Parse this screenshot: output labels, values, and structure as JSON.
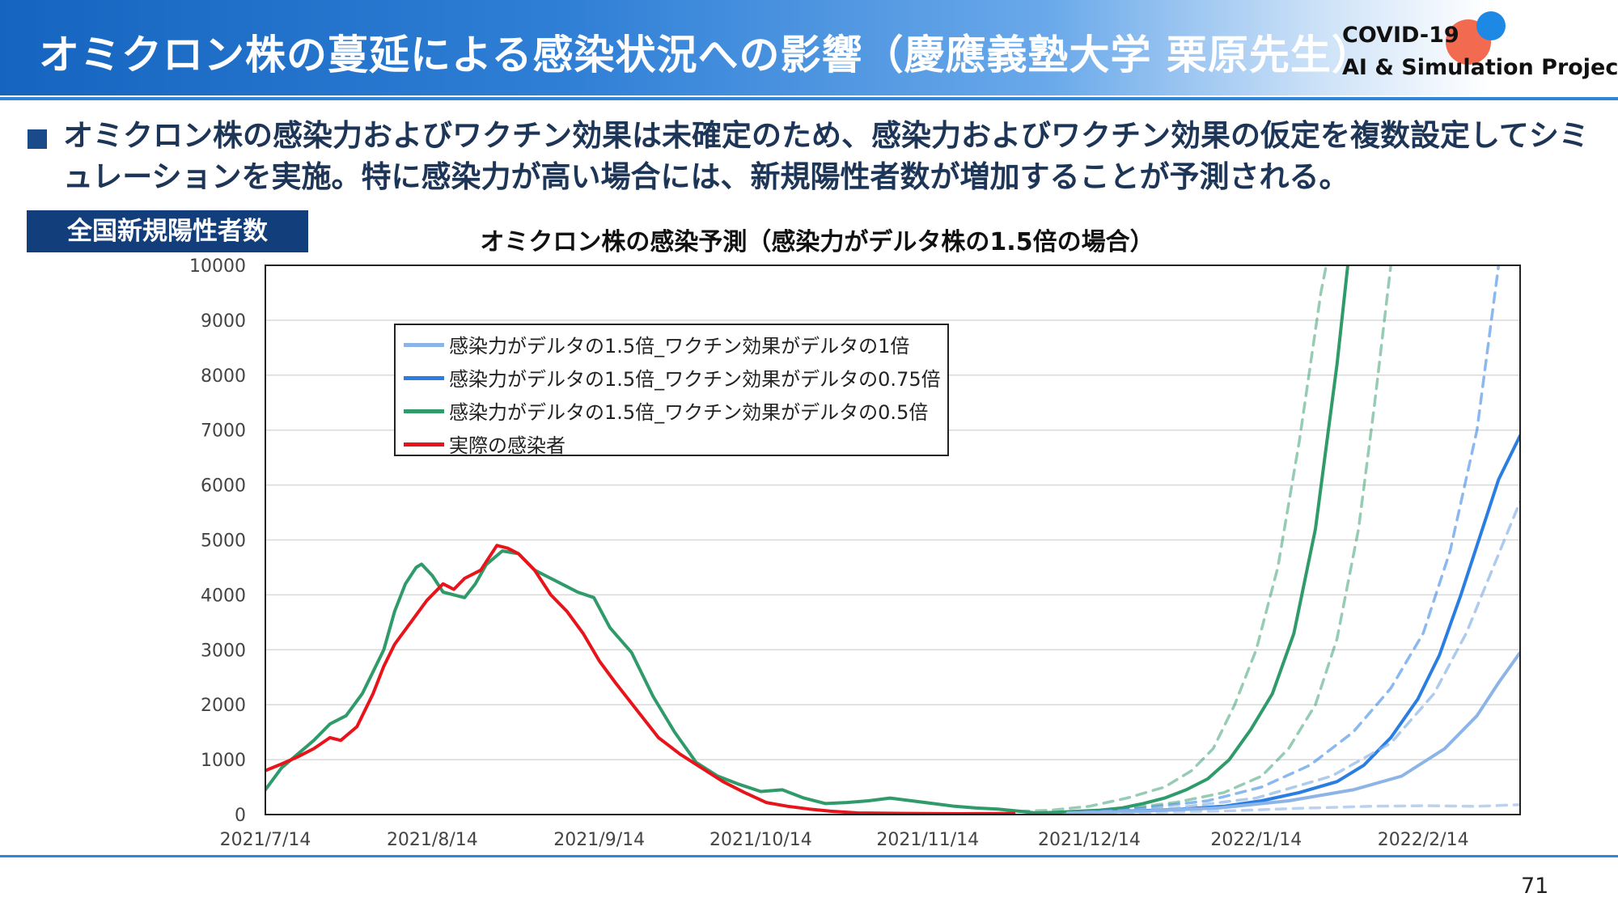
{
  "header": {
    "title": "オミクロン株の蔓延による感染状況への影響（慶應義塾大学 栗原先生）",
    "logo_line1": "COVID-19",
    "logo_line2": "AI & Simulation Project"
  },
  "bullet": "オミクロン株の感染力およびワクチン効果は未確定のため、感染力およびワクチン効果の仮定を複数設定してシミュレーションを実施。特に感染力が高い場合には、新規陽性者数が増加することが予測される。",
  "chart_label": "全国新規陽性者数",
  "page_number": "71",
  "chart_data": {
    "type": "line",
    "title": "オミクロン株の感染予測（感染力がデルタ株の1.5倍の場合）",
    "ylim": [
      0,
      10000
    ],
    "yticks": [
      "0",
      "1000",
      "2000",
      "3000",
      "4000",
      "5000",
      "6000",
      "7000",
      "8000",
      "9000",
      "10000"
    ],
    "xlim": [
      "2021-07-14",
      "2022-03-04"
    ],
    "xticks": [
      {
        "date": "2021-07-14",
        "label": "2021/7/14"
      },
      {
        "date": "2021-08-14",
        "label": "2021/8/14"
      },
      {
        "date": "2021-09-14",
        "label": "2021/9/14"
      },
      {
        "date": "2021-10-14",
        "label": "2021/10/14"
      },
      {
        "date": "2021-11-14",
        "label": "2021/11/14"
      },
      {
        "date": "2021-12-14",
        "label": "2021/12/14"
      },
      {
        "date": "2022-01-14",
        "label": "2022/1/14"
      },
      {
        "date": "2022-02-14",
        "label": "2022/2/14"
      }
    ],
    "grid": true,
    "legend_position": "top-left",
    "legend": [
      {
        "label": "感染力がデルタの1.5倍_ワクチン効果がデルタの1倍",
        "color": "#8cb4e6"
      },
      {
        "label": "感染力がデルタの1.5倍_ワクチン効果がデルタの0.75倍",
        "color": "#2a7de1"
      },
      {
        "label": "感染力がデルタの1.5倍_ワクチン効果がデルタの0.5倍",
        "color": "#2f9a6a"
      },
      {
        "label": "実際の感染者",
        "color": "#e8141b"
      }
    ],
    "series": [
      {
        "color": "#2f9a6a",
        "style": "solid",
        "opacity": 1,
        "points": [
          [
            "2021-07-14",
            450
          ],
          [
            "2021-07-17",
            850
          ],
          [
            "2021-07-20",
            1100
          ],
          [
            "2021-07-23",
            1350
          ],
          [
            "2021-07-26",
            1650
          ],
          [
            "2021-07-29",
            1800
          ],
          [
            "2021-08-01",
            2200
          ],
          [
            "2021-08-03",
            2600
          ],
          [
            "2021-08-05",
            3000
          ],
          [
            "2021-08-07",
            3700
          ],
          [
            "2021-08-09",
            4200
          ],
          [
            "2021-08-11",
            4500
          ],
          [
            "2021-08-12",
            4560
          ],
          [
            "2021-08-14",
            4350
          ],
          [
            "2021-08-16",
            4050
          ],
          [
            "2021-08-18",
            4000
          ],
          [
            "2021-08-20",
            3950
          ],
          [
            "2021-08-22",
            4200
          ],
          [
            "2021-08-24",
            4550
          ],
          [
            "2021-08-27",
            4800
          ],
          [
            "2021-08-30",
            4750
          ],
          [
            "2021-09-02",
            4450
          ],
          [
            "2021-09-05",
            4300
          ],
          [
            "2021-09-08",
            4150
          ],
          [
            "2021-09-10",
            4050
          ],
          [
            "2021-09-13",
            3950
          ],
          [
            "2021-09-16",
            3400
          ],
          [
            "2021-09-20",
            2950
          ],
          [
            "2021-09-24",
            2150
          ],
          [
            "2021-09-28",
            1500
          ],
          [
            "2021-10-02",
            950
          ],
          [
            "2021-10-06",
            700
          ],
          [
            "2021-10-10",
            550
          ],
          [
            "2021-10-14",
            420
          ],
          [
            "2021-10-18",
            450
          ],
          [
            "2021-10-22",
            300
          ],
          [
            "2021-10-26",
            200
          ],
          [
            "2021-10-30",
            220
          ],
          [
            "2021-11-03",
            250
          ],
          [
            "2021-11-07",
            300
          ],
          [
            "2021-11-11",
            250
          ],
          [
            "2021-11-15",
            200
          ],
          [
            "2021-11-19",
            150
          ],
          [
            "2021-11-23",
            120
          ],
          [
            "2021-11-27",
            100
          ],
          [
            "2021-12-01",
            60
          ],
          [
            "2021-12-04",
            30
          ],
          [
            "2021-12-08",
            40
          ],
          [
            "2021-12-12",
            60
          ],
          [
            "2021-12-16",
            80
          ],
          [
            "2021-12-20",
            120
          ],
          [
            "2021-12-24",
            200
          ],
          [
            "2021-12-28",
            300
          ],
          [
            "2022-01-01",
            450
          ],
          [
            "2022-01-05",
            650
          ],
          [
            "2022-01-09",
            1000
          ],
          [
            "2022-01-13",
            1550
          ],
          [
            "2022-01-17",
            2200
          ],
          [
            "2022-01-21",
            3300
          ],
          [
            "2022-01-25",
            5200
          ],
          [
            "2022-01-29",
            8200
          ],
          [
            "2022-01-31",
            10000
          ]
        ]
      },
      {
        "color": "#2f9a6a",
        "style": "dashed",
        "opacity": 0.5,
        "points": [
          [
            "2021-12-01",
            60
          ],
          [
            "2021-12-07",
            80
          ],
          [
            "2021-12-14",
            150
          ],
          [
            "2021-12-21",
            300
          ],
          [
            "2021-12-28",
            500
          ],
          [
            "2022-01-02",
            800
          ],
          [
            "2022-01-06",
            1200
          ],
          [
            "2022-01-10",
            2000
          ],
          [
            "2022-01-14",
            3000
          ],
          [
            "2022-01-18",
            4500
          ],
          [
            "2022-01-22",
            6800
          ],
          [
            "2022-01-26",
            9500
          ],
          [
            "2022-01-27",
            10000
          ]
        ]
      },
      {
        "color": "#2f9a6a",
        "style": "dashed",
        "opacity": 0.5,
        "points": [
          [
            "2021-12-10",
            40
          ],
          [
            "2021-12-20",
            100
          ],
          [
            "2021-12-30",
            220
          ],
          [
            "2022-01-08",
            400
          ],
          [
            "2022-01-15",
            700
          ],
          [
            "2022-01-20",
            1200
          ],
          [
            "2022-01-25",
            2000
          ],
          [
            "2022-01-29",
            3200
          ],
          [
            "2022-02-02",
            5200
          ],
          [
            "2022-02-05",
            7500
          ],
          [
            "2022-02-08",
            10000
          ]
        ]
      },
      {
        "color": "#2a7de1",
        "style": "solid",
        "opacity": 1,
        "points": [
          [
            "2021-12-10",
            30
          ],
          [
            "2021-12-20",
            60
          ],
          [
            "2021-12-30",
            90
          ],
          [
            "2022-01-08",
            150
          ],
          [
            "2022-01-15",
            250
          ],
          [
            "2022-01-22",
            400
          ],
          [
            "2022-01-29",
            600
          ],
          [
            "2022-02-03",
            900
          ],
          [
            "2022-02-08",
            1400
          ],
          [
            "2022-02-13",
            2100
          ],
          [
            "2022-02-17",
            2900
          ],
          [
            "2022-02-21",
            4000
          ],
          [
            "2022-02-25",
            5200
          ],
          [
            "2022-02-28",
            6100
          ],
          [
            "2022-03-04",
            6900
          ]
        ]
      },
      {
        "color": "#2a7de1",
        "style": "dashed",
        "opacity": 0.55,
        "points": [
          [
            "2021-12-10",
            30
          ],
          [
            "2021-12-24",
            120
          ],
          [
            "2022-01-05",
            250
          ],
          [
            "2022-01-15",
            500
          ],
          [
            "2022-01-24",
            900
          ],
          [
            "2022-02-01",
            1500
          ],
          [
            "2022-02-08",
            2300
          ],
          [
            "2022-02-14",
            3300
          ],
          [
            "2022-02-19",
            4800
          ],
          [
            "2022-02-24",
            7000
          ],
          [
            "2022-02-28",
            10000
          ]
        ]
      },
      {
        "color": "#8cb4e6",
        "style": "solid",
        "opacity": 1,
        "points": [
          [
            "2021-12-10",
            30
          ],
          [
            "2021-12-24",
            60
          ],
          [
            "2022-01-07",
            120
          ],
          [
            "2022-01-20",
            250
          ],
          [
            "2022-02-01",
            450
          ],
          [
            "2022-02-10",
            700
          ],
          [
            "2022-02-18",
            1200
          ],
          [
            "2022-02-24",
            1800
          ],
          [
            "2022-02-28",
            2400
          ],
          [
            "2022-03-04",
            2950
          ]
        ]
      },
      {
        "color": "#8cb4e6",
        "style": "dashed",
        "opacity": 0.7,
        "points": [
          [
            "2021-12-10",
            30
          ],
          [
            "2021-12-30",
            120
          ],
          [
            "2022-01-14",
            300
          ],
          [
            "2022-01-28",
            700
          ],
          [
            "2022-02-08",
            1300
          ],
          [
            "2022-02-16",
            2200
          ],
          [
            "2022-02-22",
            3300
          ],
          [
            "2022-02-27",
            4500
          ],
          [
            "2022-03-04",
            5700
          ]
        ]
      },
      {
        "color": "#8cb4e6",
        "style": "dashed",
        "opacity": 0.6,
        "points": [
          [
            "2021-12-14",
            20
          ],
          [
            "2022-01-07",
            60
          ],
          [
            "2022-01-21",
            110
          ],
          [
            "2022-02-04",
            150
          ],
          [
            "2022-02-14",
            160
          ],
          [
            "2022-02-24",
            150
          ],
          [
            "2022-03-04",
            180
          ]
        ]
      },
      {
        "color": "#e8141b",
        "style": "solid",
        "opacity": 1,
        "points": [
          [
            "2021-07-14",
            800
          ],
          [
            "2021-07-17",
            920
          ],
          [
            "2021-07-20",
            1050
          ],
          [
            "2021-07-23",
            1200
          ],
          [
            "2021-07-26",
            1400
          ],
          [
            "2021-07-28",
            1350
          ],
          [
            "2021-07-31",
            1600
          ],
          [
            "2021-08-03",
            2200
          ],
          [
            "2021-08-05",
            2700
          ],
          [
            "2021-08-07",
            3100
          ],
          [
            "2021-08-10",
            3500
          ],
          [
            "2021-08-13",
            3900
          ],
          [
            "2021-08-16",
            4200
          ],
          [
            "2021-08-18",
            4100
          ],
          [
            "2021-08-20",
            4300
          ],
          [
            "2021-08-23",
            4450
          ],
          [
            "2021-08-26",
            4900
          ],
          [
            "2021-08-28",
            4850
          ],
          [
            "2021-08-30",
            4750
          ],
          [
            "2021-09-02",
            4450
          ],
          [
            "2021-09-05",
            4000
          ],
          [
            "2021-09-08",
            3700
          ],
          [
            "2021-09-11",
            3300
          ],
          [
            "2021-09-14",
            2800
          ],
          [
            "2021-09-17",
            2400
          ],
          [
            "2021-09-21",
            1900
          ],
          [
            "2021-09-25",
            1400
          ],
          [
            "2021-09-29",
            1100
          ],
          [
            "2021-10-03",
            850
          ],
          [
            "2021-10-07",
            600
          ],
          [
            "2021-10-11",
            400
          ],
          [
            "2021-10-15",
            220
          ],
          [
            "2021-10-19",
            150
          ],
          [
            "2021-10-23",
            100
          ],
          [
            "2021-10-27",
            60
          ],
          [
            "2021-11-01",
            30
          ],
          [
            "2021-11-10",
            20
          ],
          [
            "2021-11-20",
            15
          ],
          [
            "2021-11-30",
            20
          ]
        ]
      }
    ]
  }
}
